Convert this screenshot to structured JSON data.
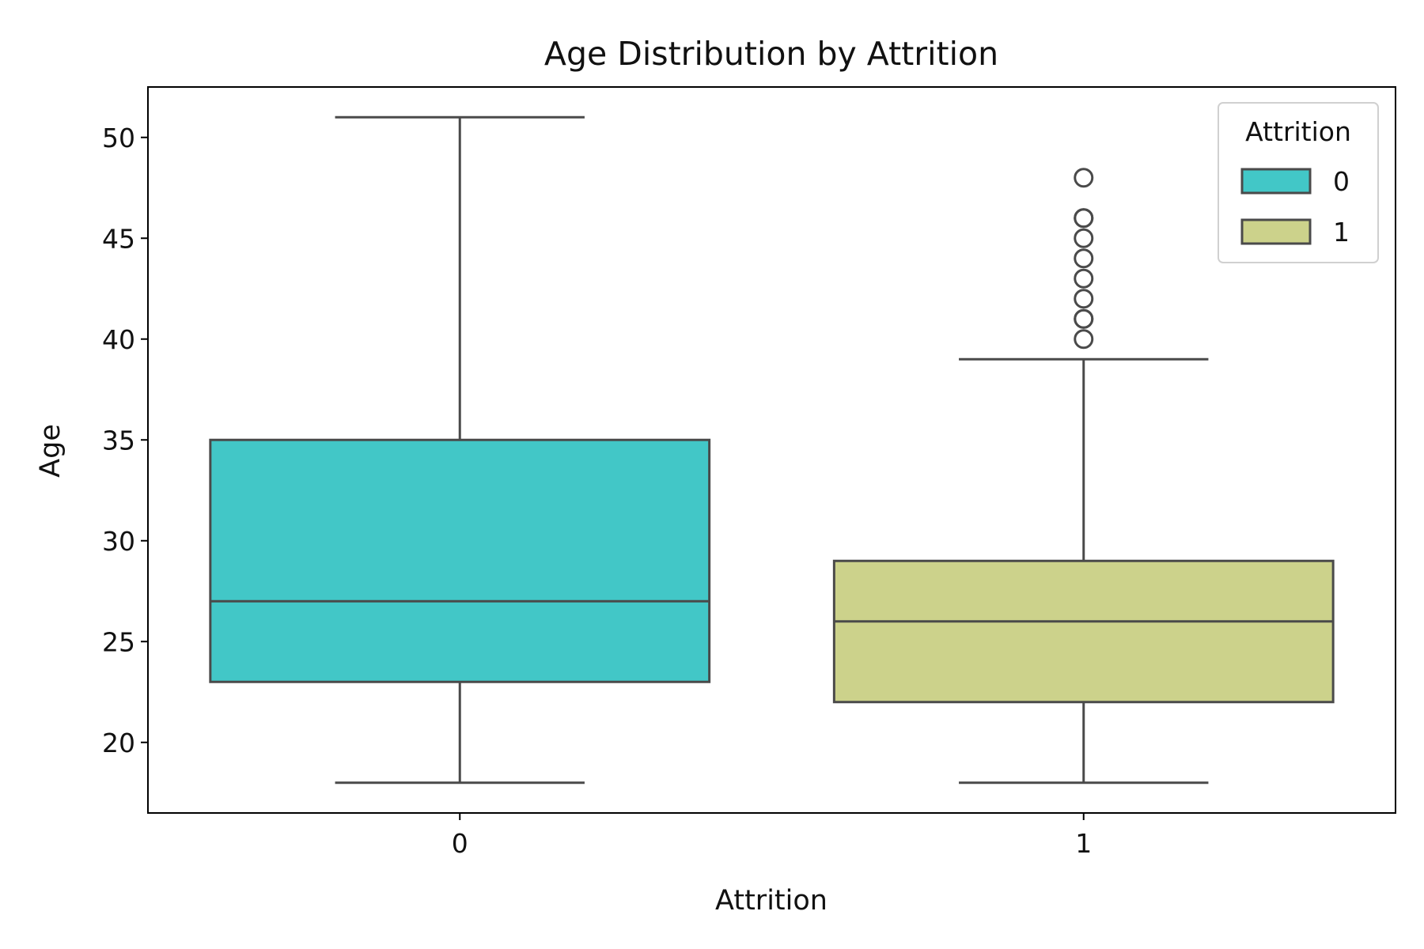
{
  "chart_data": {
    "type": "box",
    "title": "Age Distribution by Attrition",
    "xlabel": "Attrition",
    "ylabel": "Age",
    "categories": [
      "0",
      "1"
    ],
    "ylim": [
      16.5,
      52.5
    ],
    "yticks": [
      20,
      25,
      30,
      35,
      40,
      45,
      50
    ],
    "grid": false,
    "legend": {
      "title": "Attrition",
      "placement": "top-right",
      "entries": [
        "0",
        "1"
      ]
    },
    "colors": {
      "0": "#42c7c7",
      "1": "#ccd28b",
      "edge": "#4a4a4a",
      "outlier_edge": "#4a4a4a"
    },
    "series": [
      {
        "name": "0",
        "whisker_low": 18,
        "q1": 23,
        "median": 27,
        "q3": 35,
        "whisker_high": 51,
        "outliers": []
      },
      {
        "name": "1",
        "whisker_low": 18,
        "q1": 22,
        "median": 26,
        "q3": 29,
        "whisker_high": 39,
        "outliers": [
          40,
          41,
          41,
          42,
          43,
          44,
          45,
          46,
          46,
          48
        ]
      }
    ]
  }
}
